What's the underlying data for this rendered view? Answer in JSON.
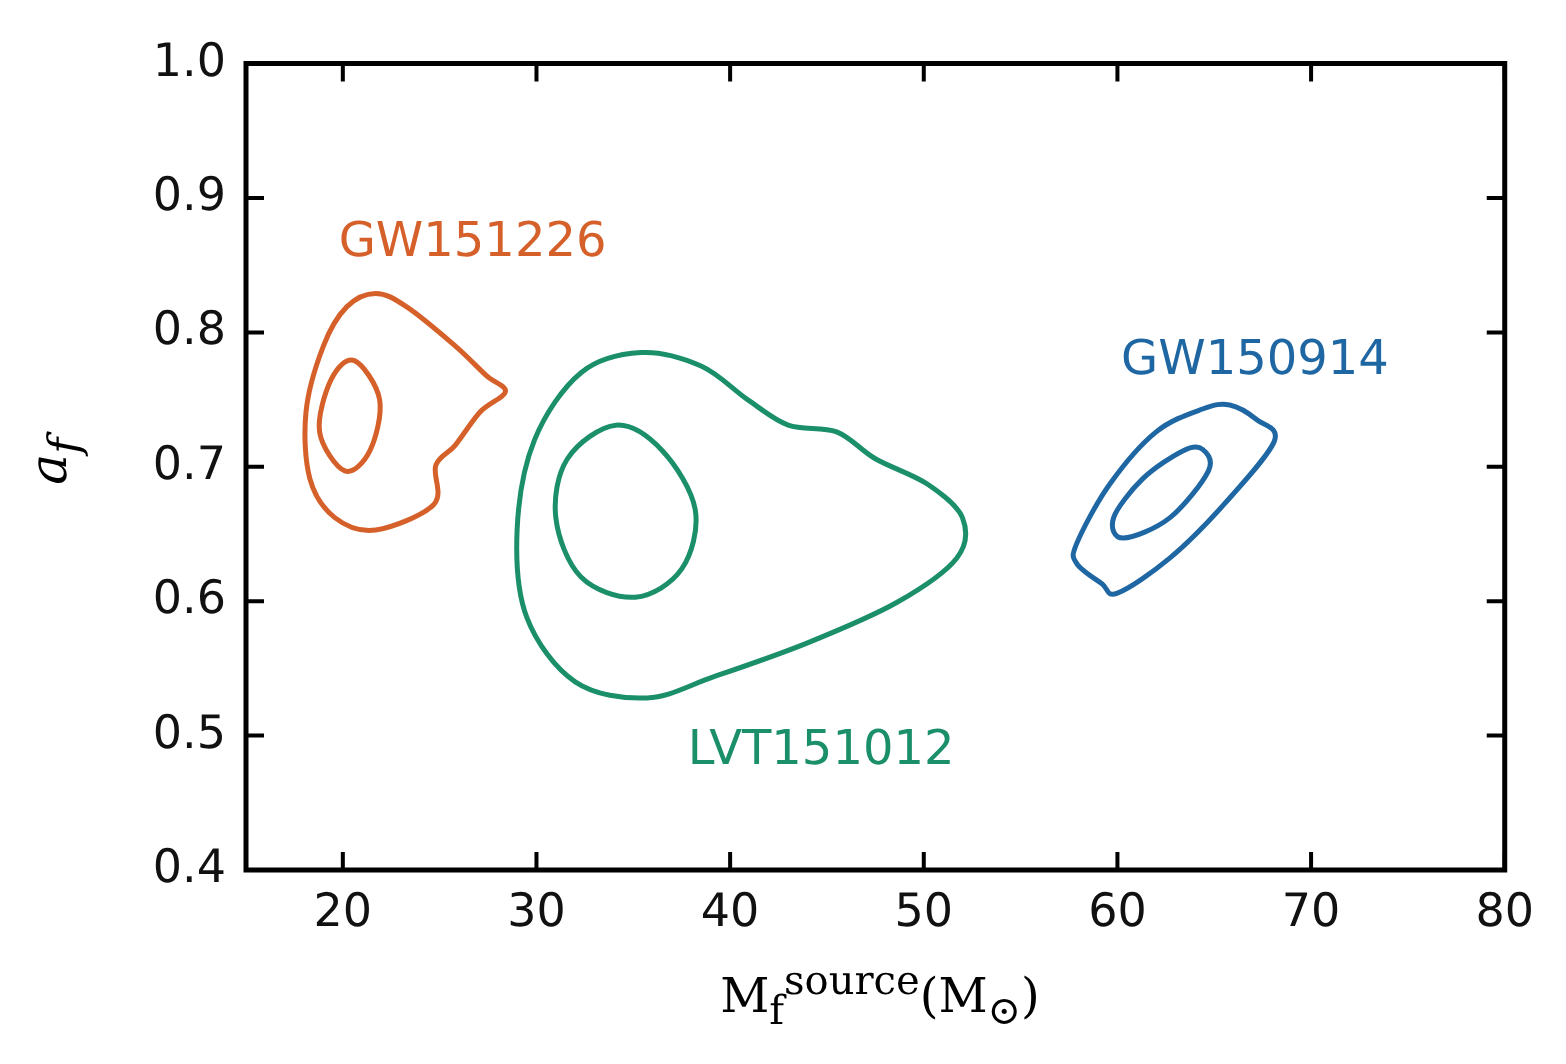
{
  "chart_data": {
    "type": "line",
    "xlabel": "M$_{f}$$^{source}$(M$_{⊙}$)",
    "ylabel": "a$_{f}$",
    "xlim": [
      15,
      80
    ],
    "xticks": [
      20,
      30,
      40,
      50,
      60,
      70,
      80
    ],
    "ylim": [
      0.4,
      1.0
    ],
    "yticks": [
      0.4,
      0.5,
      0.6,
      0.7,
      0.8,
      0.9,
      {
        "value": 1.0,
        "label": "1.0"
      }
    ],
    "grid": false,
    "legend": false,
    "annotations": [
      "GW151226",
      "LVT151012",
      "GW150914"
    ]
  }
}
